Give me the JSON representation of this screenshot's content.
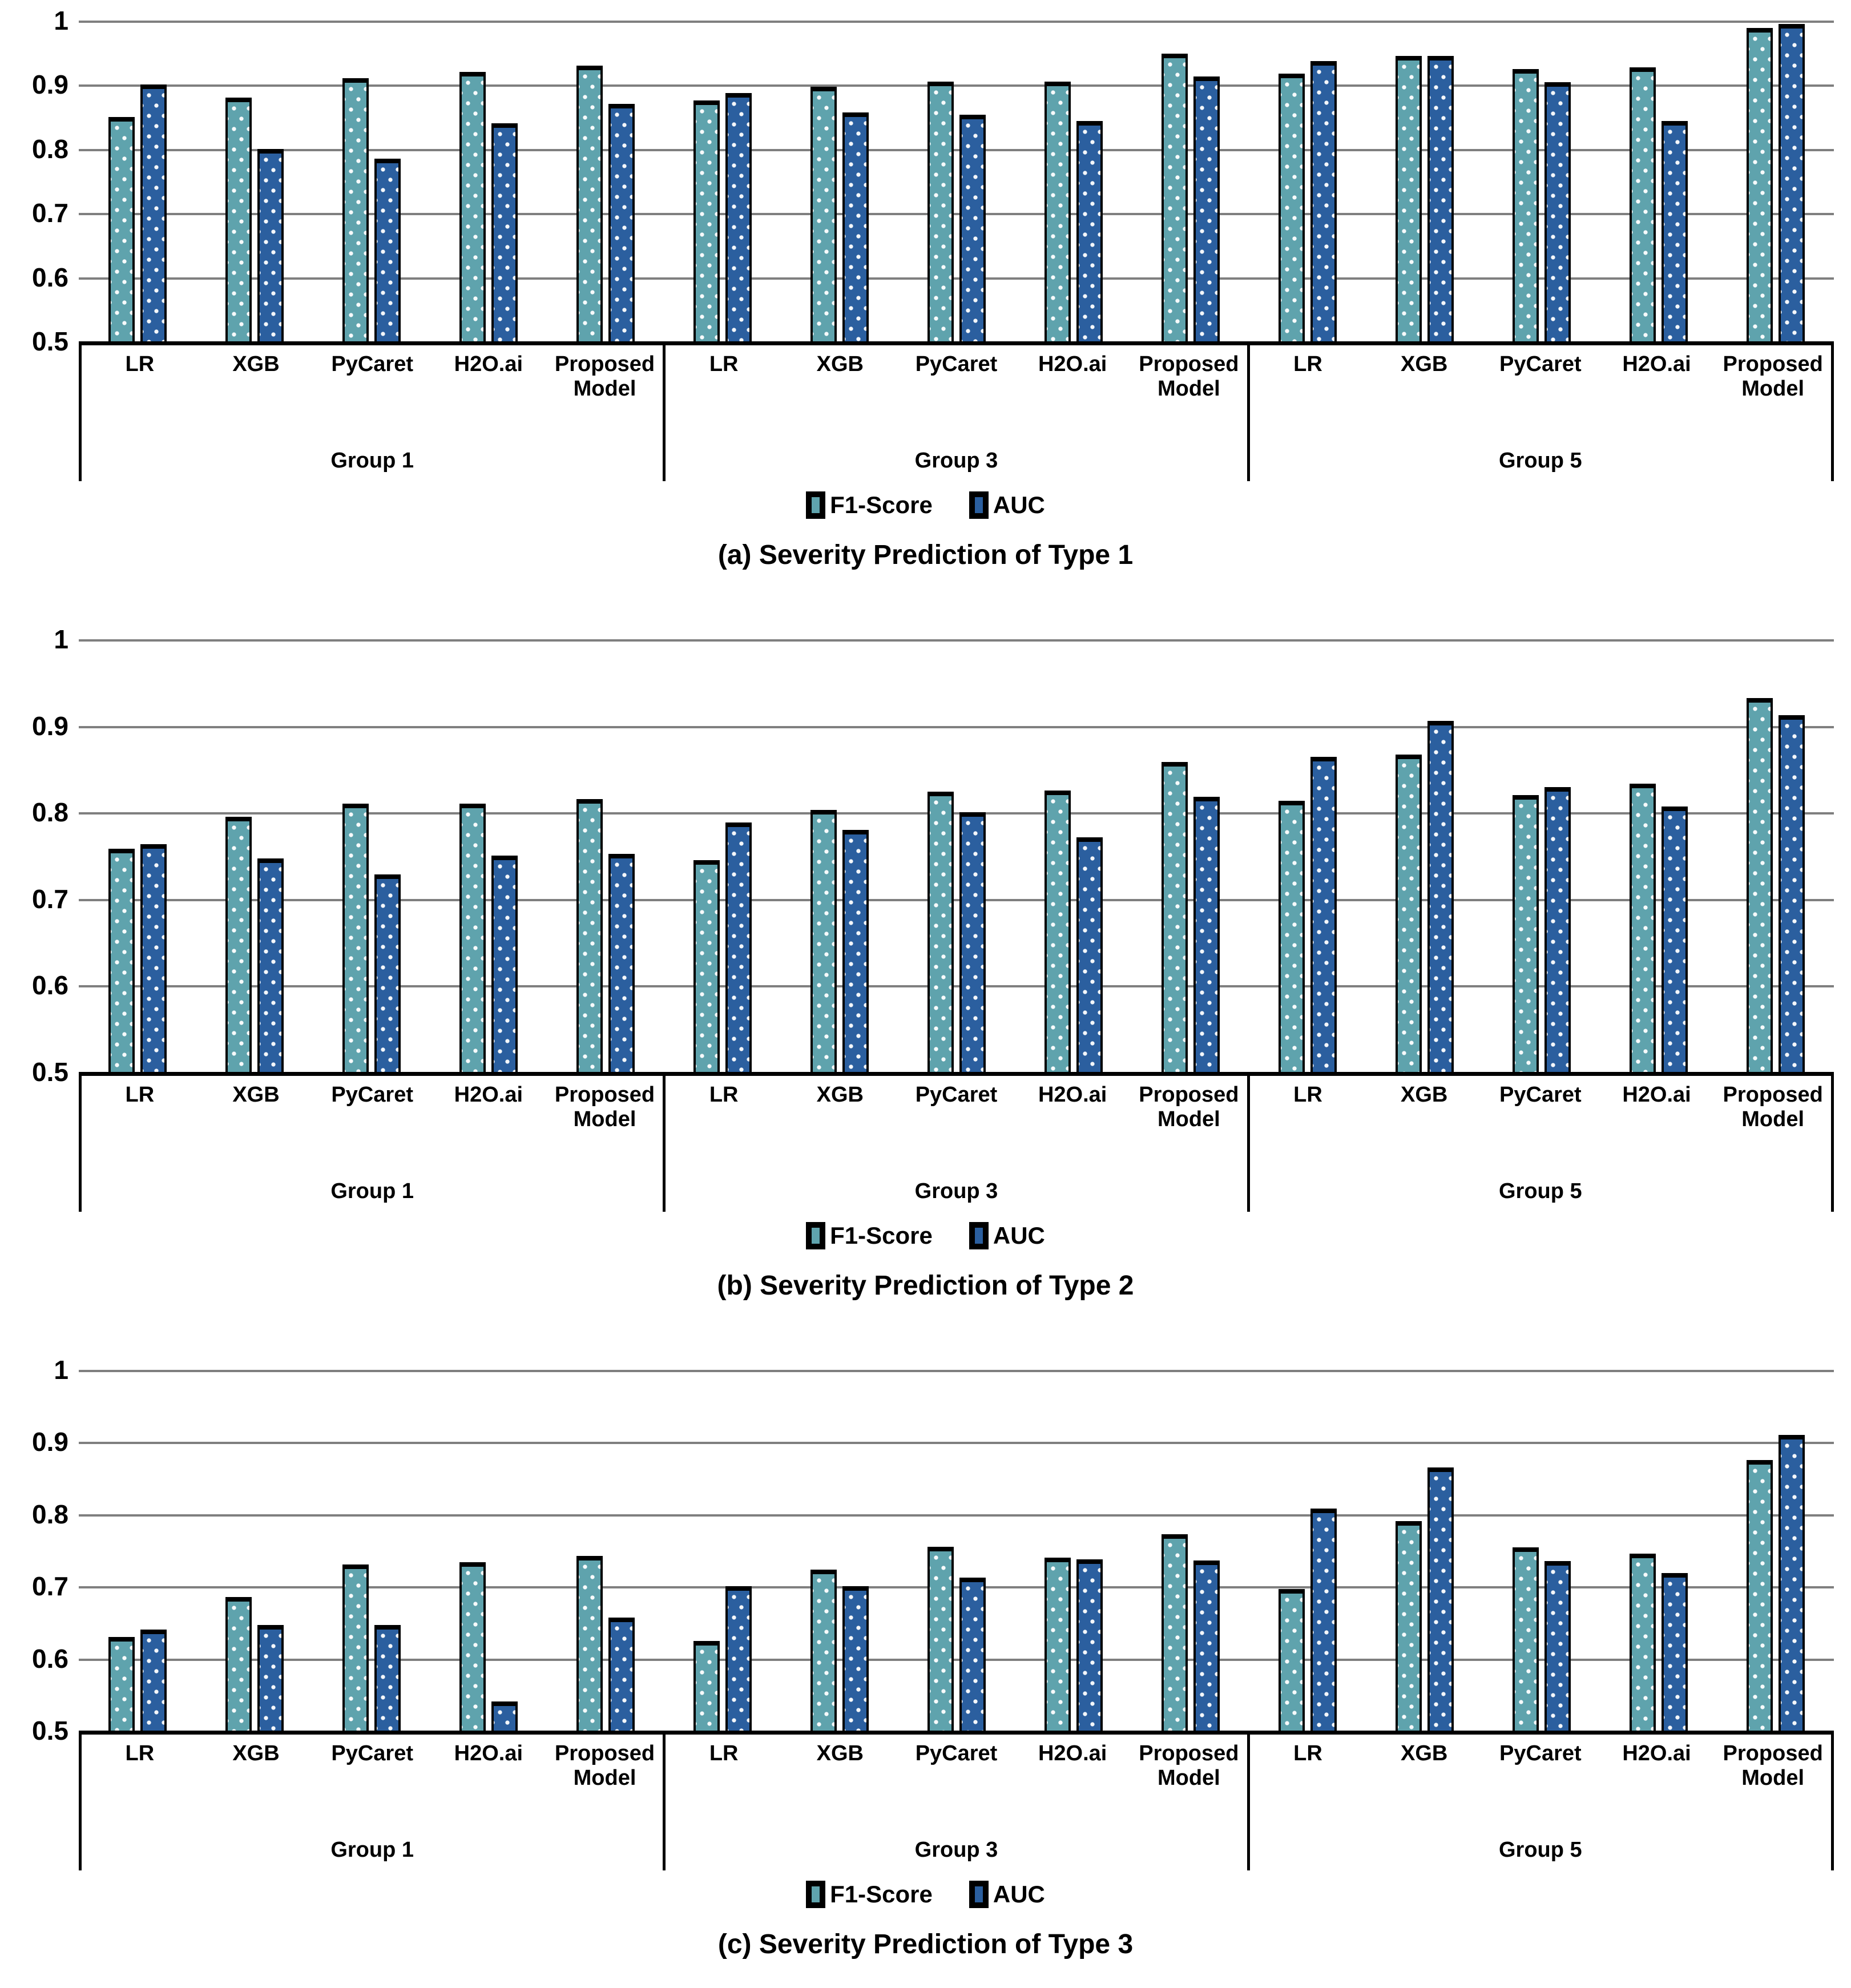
{
  "page_background": "#ffffff",
  "colors": {
    "f1": "#5FA3AD",
    "auc": "#2B5F9F",
    "grid": "#7F7F7F",
    "axis": "#000000",
    "bar_border": "#000000",
    "dot_pattern": "#FFFFFF"
  },
  "legend": {
    "items": [
      {
        "key": "f1",
        "label": "F1-Score"
      },
      {
        "key": "auc",
        "label": "AUC"
      }
    ]
  },
  "chart_data": [
    {
      "type": "bar",
      "caption": "(a) Severity Prediction of Type 1",
      "ylim": [
        0.5,
        1.0
      ],
      "ytick_labels": [
        "1",
        "0.9",
        "0.8",
        "0.7",
        "0.6",
        "0.5"
      ],
      "yticks": [
        1.0,
        0.9,
        0.8,
        0.7,
        0.6,
        0.5
      ],
      "grid": true,
      "legend_position": "bottom",
      "group_labels": [
        "Group 1",
        "Group 3",
        "Group 5"
      ],
      "categories": [
        "LR",
        "XGB",
        "PyCaret",
        "H2O.ai",
        "Proposed Model"
      ],
      "series": [
        {
          "name": "F1-Score",
          "values_by_group": [
            [
              0.85,
              0.88,
              0.91,
              0.92,
              0.93
            ],
            [
              0.875,
              0.897,
              0.905,
              0.905,
              0.948
            ],
            [
              0.917,
              0.945,
              0.924,
              0.927,
              0.988
            ]
          ]
        },
        {
          "name": "AUC",
          "values_by_group": [
            [
              0.9,
              0.8,
              0.785,
              0.84,
              0.87
            ],
            [
              0.887,
              0.857,
              0.853,
              0.843,
              0.913
            ],
            [
              0.937,
              0.945,
              0.904,
              0.843,
              0.995
            ]
          ]
        }
      ]
    },
    {
      "type": "bar",
      "caption": "(b) Severity Prediction of Type 2",
      "ylim": [
        0.5,
        1.0
      ],
      "ytick_labels": [
        "1",
        "0.9",
        "0.8",
        "0.7",
        "0.6",
        "0.5"
      ],
      "yticks": [
        1.0,
        0.9,
        0.8,
        0.7,
        0.6,
        0.5
      ],
      "grid": true,
      "legend_position": "bottom",
      "group_labels": [
        "Group 1",
        "Group 3",
        "Group 5"
      ],
      "categories": [
        "LR",
        "XGB",
        "PyCaret",
        "H2O.ai",
        "Proposed Model"
      ],
      "series": [
        {
          "name": "F1-Score",
          "values_by_group": [
            [
              0.758,
              0.795,
              0.81,
              0.81,
              0.815
            ],
            [
              0.745,
              0.803,
              0.824,
              0.825,
              0.858
            ],
            [
              0.813,
              0.867,
              0.82,
              0.833,
              0.932
            ]
          ]
        },
        {
          "name": "AUC",
          "values_by_group": [
            [
              0.763,
              0.747,
              0.728,
              0.75,
              0.752
            ],
            [
              0.788,
              0.78,
              0.8,
              0.771,
              0.818
            ],
            [
              0.864,
              0.906,
              0.829,
              0.807,
              0.912
            ]
          ]
        }
      ]
    },
    {
      "type": "bar",
      "caption": "(c) Severity Prediction of Type 3",
      "ylim": [
        0.5,
        1.0
      ],
      "ytick_labels": [
        "1",
        "0.9",
        "0.8",
        "0.7",
        "0.6",
        "0.5"
      ],
      "yticks": [
        1.0,
        0.9,
        0.8,
        0.7,
        0.6,
        0.5
      ],
      "grid": true,
      "legend_position": "bottom",
      "group_labels": [
        "Group 1",
        "Group 3",
        "Group 5"
      ],
      "categories": [
        "LR",
        "XGB",
        "PyCaret",
        "H2O.ai",
        "Proposed Model"
      ],
      "series": [
        {
          "name": "F1-Score",
          "values_by_group": [
            [
              0.63,
              0.685,
              0.73,
              0.733,
              0.742
            ],
            [
              0.624,
              0.723,
              0.755,
              0.74,
              0.772
            ],
            [
              0.696,
              0.79,
              0.754,
              0.745,
              0.875
            ]
          ]
        },
        {
          "name": "AUC",
          "values_by_group": [
            [
              0.64,
              0.646,
              0.646,
              0.54,
              0.657
            ],
            [
              0.7,
              0.7,
              0.712,
              0.737,
              0.736
            ],
            [
              0.808,
              0.865,
              0.735,
              0.718,
              0.91
            ]
          ]
        }
      ]
    }
  ]
}
